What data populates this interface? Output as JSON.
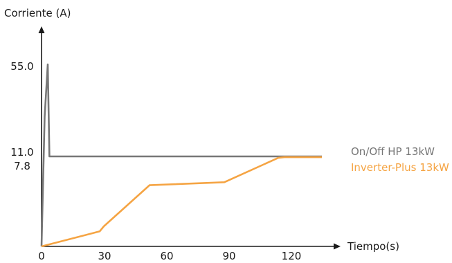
{
  "chart_data": {
    "type": "line",
    "title": "",
    "ylabel": "Corriente (A)",
    "xlabel": "Tiempo(s)",
    "x_ticks": [
      "0",
      "30",
      "60",
      "90",
      "120"
    ],
    "y_ticks": [
      "55.0",
      "11.0",
      "7.8"
    ],
    "xlim": [
      0,
      135
    ],
    "legend_position": "right",
    "series": [
      {
        "name": "On/Off HP 13kW",
        "color": "#777777",
        "points": [
          [
            0,
            0
          ],
          [
            1.5,
            30
          ],
          [
            3.0,
            55.0
          ],
          [
            3.8,
            11.0
          ],
          [
            135,
            11.0
          ]
        ]
      },
      {
        "name": "Inverter-Plus 13kW",
        "color": "#F5A443",
        "points": [
          [
            0,
            0
          ],
          [
            28,
            1.5
          ],
          [
            30,
            2.0
          ],
          [
            52,
            6.1
          ],
          [
            88,
            6.4
          ],
          [
            114,
            10.6
          ],
          [
            117,
            10.8
          ],
          [
            135,
            10.8
          ]
        ]
      }
    ]
  }
}
